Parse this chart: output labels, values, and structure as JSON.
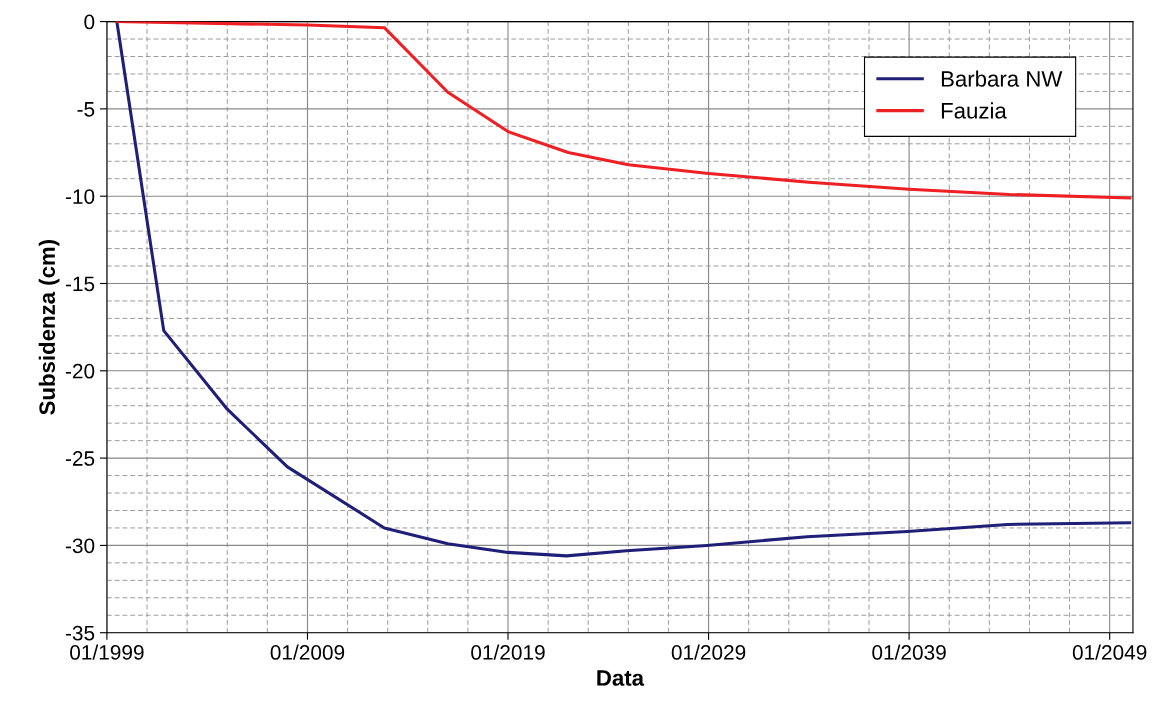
{
  "chart_data": {
    "type": "line",
    "xlabel": "Data",
    "ylabel": "Subsidenza (cm)",
    "series": [
      {
        "name": "Barbara NW",
        "color": "#1f1f78",
        "x": [
          "1999-07",
          "2001-11",
          "2005-01",
          "2008-01",
          "2012-11",
          "2016-01",
          "2019-01",
          "2021-12",
          "2024-12",
          "2028-12",
          "2033-12",
          "2038-12",
          "2043-12",
          "2050-01"
        ],
        "values": [
          0,
          -17.7,
          -22.2,
          -25.5,
          -29.0,
          -29.9,
          -30.4,
          -30.6,
          -30.3,
          -30.0,
          -29.5,
          -29.2,
          -28.8,
          -28.7
        ]
      },
      {
        "name": "Fauzia",
        "color": "#ee2024",
        "x": [
          "1999-07",
          "2009-01",
          "2012-11",
          "2016-01",
          "2019-01",
          "2022-01",
          "2025-01",
          "2029-01",
          "2034-01",
          "2039-01",
          "2044-01",
          "2050-01"
        ],
        "values": [
          0,
          -0.2,
          -0.35,
          -4.05,
          -6.3,
          -7.5,
          -8.2,
          -8.7,
          -9.2,
          -9.6,
          -9.9,
          -10.1
        ]
      }
    ],
    "xlim": [
      "1999-01",
      "2050-03"
    ],
    "xticks": [
      {
        "value": "1999-01",
        "label": "01/1999"
      },
      {
        "value": "2009-01",
        "label": "01/2009"
      },
      {
        "value": "2019-01",
        "label": "01/2019"
      },
      {
        "value": "2029-01",
        "label": "01/2029"
      },
      {
        "value": "2039-01",
        "label": "01/2039"
      },
      {
        "value": "2049-01",
        "label": "01/2049"
      }
    ],
    "ylim": [
      -35,
      0
    ],
    "yticks": [
      -35,
      -30,
      -25,
      -20,
      -15,
      -10,
      -5,
      0
    ],
    "grid": true,
    "legend": "top right",
    "marker": "none",
    "line_style": "solid"
  }
}
